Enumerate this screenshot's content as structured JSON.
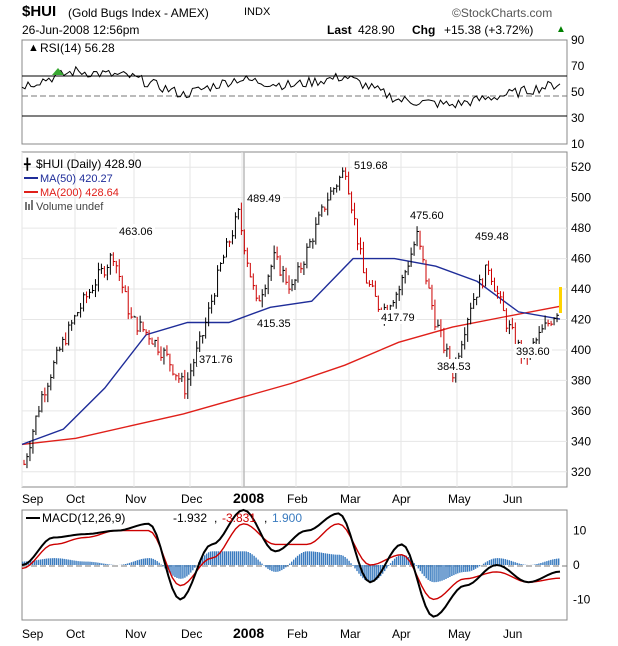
{
  "header": {
    "symbol": "$HUI",
    "name": "(Gold Bugs Index - AMEX)",
    "exchange": "INDX",
    "brand": "©StockCharts.com",
    "datetime": "26-Jun-2008 12:56pm",
    "last_label": "Last",
    "last_value": "428.90",
    "chg_label": "Chg",
    "chg_value": "+15.38 (+3.72%)",
    "chg_color": "#008000"
  },
  "chart_data": [
    {
      "type": "line",
      "title": "RSI(14) 56.28",
      "legend": [
        "RSI(14) 56.28"
      ],
      "ylim": [
        10,
        90
      ],
      "y_ticks": [
        "90",
        "70",
        "50",
        "30",
        "10"
      ],
      "overbought": 70,
      "oversold": 30,
      "series": [
        {
          "name": "RSI(14)",
          "color": "#000000",
          "x": [
            "Sep",
            "Oct",
            "Nov",
            "Dec",
            "2008",
            "Feb",
            "Mar",
            "Apr",
            "May",
            "Jun",
            "Jun-26"
          ],
          "values": [
            55,
            66,
            62,
            48,
            60,
            55,
            62,
            44,
            40,
            48,
            56.28
          ]
        }
      ]
    },
    {
      "type": "line",
      "title": "$HUI (Daily) 428.90",
      "legend": [
        "$HUI (Daily) 428.90",
        "MA(50) 420.27",
        "MA(200) 428.64",
        "Volume undef"
      ],
      "ylim": [
        310,
        530
      ],
      "y_ticks": [
        520,
        500,
        480,
        460,
        440,
        420,
        400,
        380,
        360,
        340,
        320
      ],
      "x_ticks": [
        "Sep",
        "Oct",
        "Nov",
        "Dec",
        "2008",
        "Feb",
        "Mar",
        "Apr",
        "May",
        "Jun"
      ],
      "annotations": [
        "463.06",
        "489.49",
        "415.35",
        "371.76",
        "519.68",
        "475.60",
        "417.79",
        "459.48",
        "384.53",
        "393.60"
      ],
      "colors": {
        "price": "#000000",
        "down": "#cc0000",
        "ma50": "#1f2d99",
        "ma200": "#e0201a",
        "last": "#ffd400"
      },
      "series": [
        {
          "name": "$HUI (Daily)",
          "x": [
            "Sep-01",
            "Sep-15",
            "Oct-01",
            "Oct-15",
            "Nov-01",
            "Nov-08",
            "Nov-20",
            "Dec-01",
            "Dec-15",
            "Dec-24",
            "Jan-01",
            "Jan-08",
            "Jan-15",
            "Jan-22",
            "Feb-01",
            "Feb-15",
            "Mar-01",
            "Mar-10",
            "Mar-17",
            "Mar-25",
            "Apr-01",
            "Apr-10",
            "Apr-20",
            "May-01",
            "May-05",
            "May-12",
            "May-20",
            "Jun-01",
            "Jun-10",
            "Jun-18",
            "Jun-26"
          ],
          "values": [
            325,
            370,
            400,
            425,
            445,
            463,
            420,
            410,
            395,
            375,
            410,
            455,
            489,
            430,
            460,
            440,
            470,
            500,
            519,
            450,
            425,
            440,
            475,
            420,
            385,
            430,
            455,
            418,
            394,
            412,
            428.9
          ]
        },
        {
          "name": "MA(50)",
          "x": [
            "Sep-01",
            "Oct-01",
            "Nov-01",
            "Nov-20",
            "Dec-15",
            "Jan-08",
            "Feb-01",
            "Mar-01",
            "Mar-20",
            "Apr-10",
            "May-01",
            "May-20",
            "Jun-10",
            "Jun-26"
          ],
          "values": [
            338,
            348,
            375,
            410,
            418,
            418,
            428,
            432,
            460,
            460,
            455,
            445,
            425,
            420.27
          ]
        },
        {
          "name": "MA(200)",
          "x": [
            "Sep-01",
            "Oct-01",
            "Nov-01",
            "Dec-01",
            "Jan-01",
            "Feb-01",
            "Mar-01",
            "Apr-01",
            "May-01",
            "Jun-01",
            "Jun-26"
          ],
          "values": [
            338,
            342,
            350,
            358,
            368,
            378,
            390,
            405,
            415,
            422,
            428.64
          ]
        }
      ]
    },
    {
      "type": "line",
      "title": "MACD(12,26,9) -1.932, -3.831, 1.900",
      "legend": [
        "MACD(12,26,9)",
        "-1.932",
        "-3.831",
        "1.900"
      ],
      "legend_colors": [
        "#000000",
        "#000000",
        "#cc0000",
        "#3a7bbf"
      ],
      "ylim": [
        -16,
        16
      ],
      "y_ticks": [
        "10",
        "0",
        "-10"
      ],
      "x_ticks": [
        "Sep",
        "Oct",
        "Nov",
        "Dec",
        "2008",
        "Feb",
        "Mar",
        "Apr",
        "May",
        "Jun"
      ],
      "series": [
        {
          "name": "MACD",
          "color": "#000000",
          "values": [
            0,
            8,
            9,
            10,
            12,
            -10,
            6,
            16,
            4,
            10,
            15,
            -5,
            6,
            -15,
            -6,
            0,
            -5,
            -1.932
          ]
        },
        {
          "name": "Signal",
          "color": "#cc0000",
          "values": [
            -1,
            6,
            8,
            10,
            10,
            -6,
            2,
            12,
            6,
            6,
            12,
            0,
            3,
            -10,
            -4,
            -2,
            -5,
            -3.831
          ]
        },
        {
          "name": "Histogram",
          "color": "#3a7bbf",
          "values": [
            1,
            2,
            1,
            0,
            2,
            -4,
            4,
            4,
            -2,
            4,
            3,
            -5,
            3,
            -5,
            -2,
            2,
            0,
            1.9
          ]
        }
      ]
    }
  ]
}
